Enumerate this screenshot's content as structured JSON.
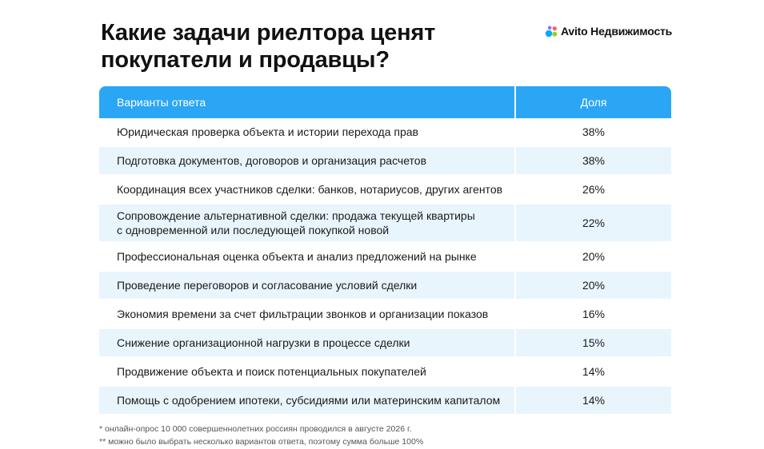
{
  "title_lines": [
    "Какие задачи риелтора ценят",
    "покупатели и продавцы?"
  ],
  "brand": {
    "name": "Avito Недвижимость",
    "colors": [
      "#00aaff",
      "#97cf26",
      "#a169f7",
      "#ff6163"
    ]
  },
  "colors": {
    "header": "#2aa6f4",
    "row_alt": "#e9f5fd"
  },
  "chart_data": {
    "type": "table",
    "columns": [
      "Варианты ответа",
      "Доля"
    ],
    "rows": [
      {
        "label": [
          "Юридическая проверка объекта и истории перехода прав"
        ],
        "value": "38%"
      },
      {
        "label": [
          "Подготовка документов, договоров и организация расчетов"
        ],
        "value": "38%"
      },
      {
        "label": [
          "Координация всех участников сделки: банков, нотариусов, других агентов"
        ],
        "value": "26%"
      },
      {
        "label": [
          "Сопровождение альтернативной сделки: продажа текущей квартиры",
          "с одновременной или последующей покупкой новой"
        ],
        "value": "22%"
      },
      {
        "label": [
          "Профессиональная оценка объекта и анализ предложений на рынке"
        ],
        "value": "20%"
      },
      {
        "label": [
          "Проведение переговоров и согласование условий сделки"
        ],
        "value": "20%"
      },
      {
        "label": [
          "Экономия времени за счет фильтрации звонков и организации показов"
        ],
        "value": "16%"
      },
      {
        "label": [
          "Снижение организационной нагрузки в процессе сделки"
        ],
        "value": "15%"
      },
      {
        "label": [
          "Продвижение объекта и поиск потенциальных покупателей"
        ],
        "value": "14%"
      },
      {
        "label": [
          "Помощь с одобрением ипотеки, субсидиями или материнским капиталом"
        ],
        "value": "14%"
      }
    ]
  },
  "footnotes": [
    "* онлайн-опрос 10 000 совершеннолетних россиян проводился в августе 2026 г.",
    "** можно было выбрать несколько вариантов ответа, поэтому сумма больше 100%"
  ]
}
